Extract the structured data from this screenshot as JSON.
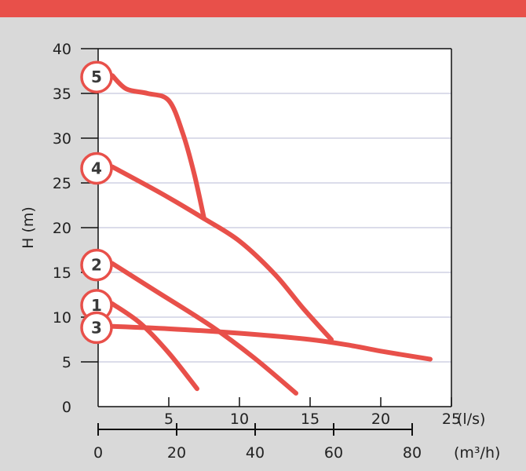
{
  "colors": {
    "top_bar": "#e8504a",
    "background": "#d9d9d9",
    "plot_bg": "#ffffff",
    "curve": "#e8504a",
    "grid": "#c5c8dd",
    "axis": "#111111",
    "badge_fill": "#ffffff",
    "badge_stroke": "#e8504a"
  },
  "chart_data": {
    "type": "line",
    "ylabel": "H (m)",
    "xlabel_primary_unit": "(l/s)",
    "xlabel_secondary_unit": "(m³/h)",
    "xlim": [
      0,
      25
    ],
    "ylim": [
      0,
      40
    ],
    "x_ticks": [
      "5",
      "10",
      "15",
      "20",
      "25"
    ],
    "x_tick_values": [
      5,
      10,
      15,
      20,
      25
    ],
    "x2_ticks": [
      "0",
      "20",
      "40",
      "60",
      "80"
    ],
    "x2_tick_values": [
      0,
      20,
      40,
      60,
      80
    ],
    "y_ticks": [
      "0",
      "5",
      "10",
      "15",
      "20",
      "25",
      "30",
      "35",
      "40"
    ],
    "y_tick_values": [
      0,
      5,
      10,
      15,
      20,
      25,
      30,
      35,
      40
    ],
    "grid": "horizontal",
    "series": [
      {
        "name": "1",
        "x": [
          1.0,
          3.0,
          5.0,
          7.0
        ],
        "y": [
          11.5,
          9.3,
          6.0,
          2.0
        ]
      },
      {
        "name": "2",
        "x": [
          1.0,
          4.0,
          8.0,
          11.0,
          14.0
        ],
        "y": [
          16.0,
          13.0,
          9.0,
          5.5,
          1.5
        ]
      },
      {
        "name": "3",
        "x": [
          0.5,
          5.0,
          10.0,
          15.0,
          18.0,
          20.0,
          23.5
        ],
        "y": [
          9.0,
          8.7,
          8.2,
          7.5,
          6.8,
          6.2,
          5.3
        ]
      },
      {
        "name": "4",
        "x": [
          1.0,
          4.5,
          7.5,
          10.0,
          12.5,
          14.5,
          16.5
        ],
        "y": [
          26.8,
          23.8,
          21.0,
          18.5,
          14.8,
          11.0,
          7.5
        ]
      },
      {
        "name": "5",
        "x": [
          1.0,
          2.0,
          3.5,
          5.0,
          6.0,
          6.8,
          7.5
        ],
        "y": [
          37.0,
          35.5,
          35.0,
          34.2,
          30.5,
          26.0,
          21.0
        ]
      }
    ]
  }
}
